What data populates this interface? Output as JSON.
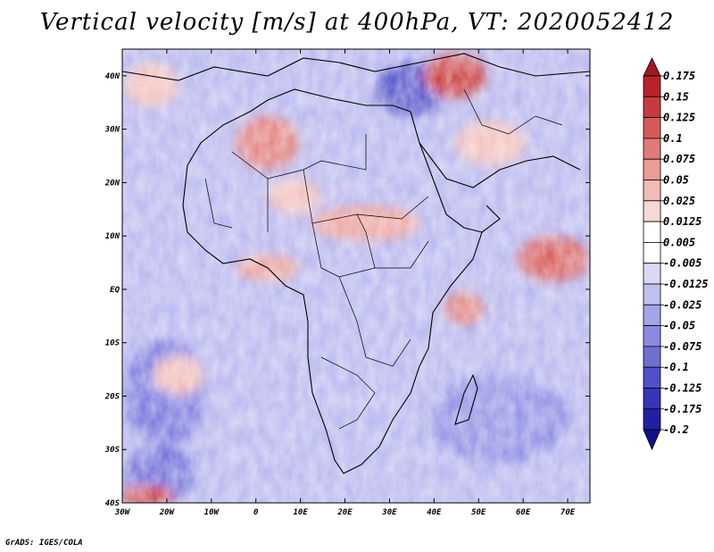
{
  "title": "Vertical velocity [m/s] at 400hPa, VT: 2020052412",
  "credit": "GrADS: IGES/COLA",
  "map": {
    "region": "Africa",
    "lon_labels": [
      "30W",
      "20W",
      "10W",
      "0",
      "10E",
      "20E",
      "30E",
      "40E",
      "50E",
      "60E",
      "70E"
    ],
    "lat_labels": [
      "40N",
      "30N",
      "20N",
      "10N",
      "EQ",
      "10S",
      "20S",
      "30S",
      "40S"
    ],
    "lon_range": [
      -30,
      75
    ],
    "lat_range": [
      -40,
      45
    ],
    "field": "vertical velocity at 400hPa"
  },
  "colorbar": {
    "labels": [
      "0.175",
      "0.15",
      "0.125",
      "0.1",
      "0.075",
      "0.05",
      "0.025",
      "0.0125",
      "0.005",
      "-0.005",
      "-0.0125",
      "-0.025",
      "-0.05",
      "-0.075",
      "-0.1",
      "-0.125",
      "-0.175",
      "-0.2"
    ],
    "colors": [
      "#a01a22",
      "#b8232b",
      "#c83a3e",
      "#d65a5a",
      "#e07a78",
      "#ea9c98",
      "#f1bcb8",
      "#f7d8d6",
      "#ffffff",
      "#ffffff",
      "#d9d9f5",
      "#c0c0ee",
      "#a4a4e6",
      "#8a8ade",
      "#6e6ed4",
      "#5050c8",
      "#3535b8",
      "#2020a0",
      "#10108a"
    ]
  }
}
